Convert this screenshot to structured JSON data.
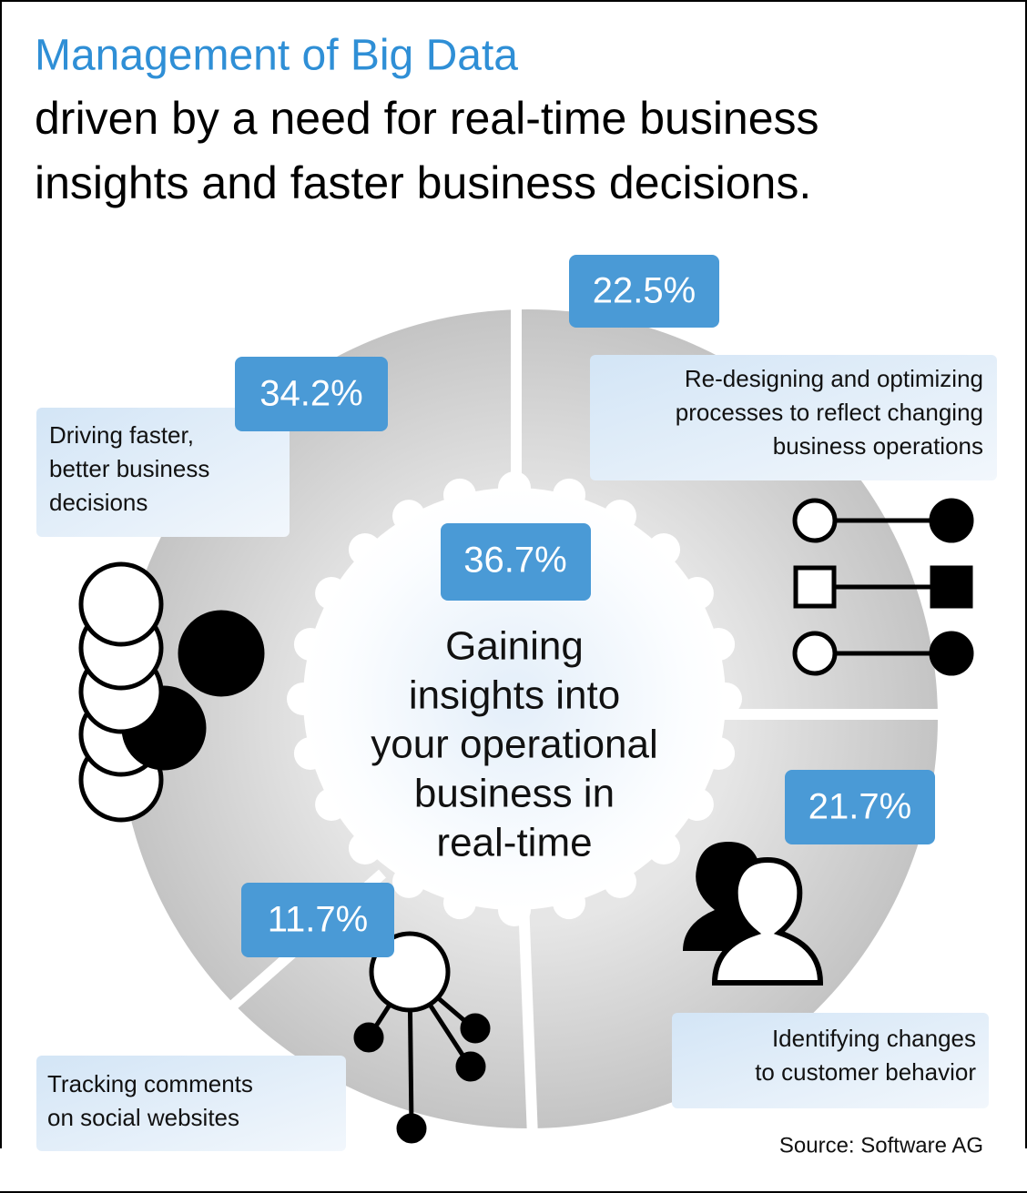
{
  "header": {
    "title": "Management of Big Data",
    "subtitle_lines": [
      "driven by a need for real-time business",
      "insights and faster business decisions."
    ]
  },
  "center": {
    "value": "36.7%",
    "label_lines": [
      "Gaining",
      "insights into",
      "your operational",
      "business in",
      "real-time"
    ]
  },
  "items": [
    {
      "value": "22.5%",
      "label_lines": [
        "Re-designing and optimizing",
        "processes to reflect changing",
        "business operations"
      ]
    },
    {
      "value": "34.2%",
      "label_lines": [
        "Driving faster,",
        "better business",
        "decisions"
      ]
    },
    {
      "value": "21.7%",
      "label_lines": [
        "Identifying changes",
        "to customer behavior"
      ]
    },
    {
      "value": "11.7%",
      "label_lines": [
        "Tracking comments",
        "on social websites"
      ]
    }
  ],
  "source": "Source: Software AG"
}
